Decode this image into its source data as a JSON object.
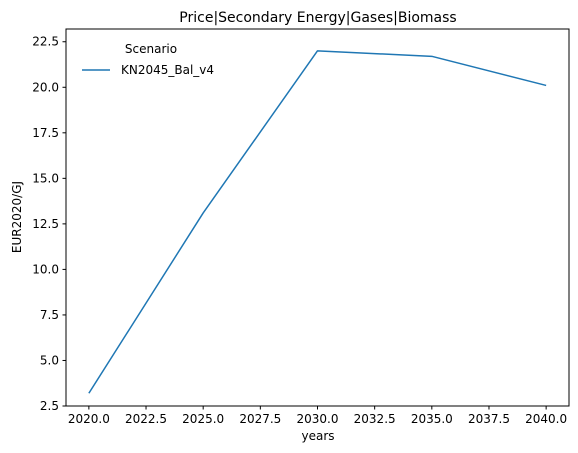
{
  "chart_data": {
    "type": "line",
    "title": "Price|Secondary Energy|Gases|Biomass",
    "xlabel": "years",
    "ylabel": "EUR2020/GJ",
    "xlim": [
      2019.0,
      2041.0
    ],
    "ylim": [
      2.5,
      23.2
    ],
    "xticks": [
      2020.0,
      2022.5,
      2025.0,
      2027.5,
      2030.0,
      2032.5,
      2035.0,
      2037.5,
      2040.0
    ],
    "xtick_labels": [
      "2020.0",
      "2022.5",
      "2025.0",
      "2027.5",
      "2030.0",
      "2032.5",
      "2035.0",
      "2037.5",
      "2040.0"
    ],
    "yticks": [
      2.5,
      5.0,
      7.5,
      10.0,
      12.5,
      15.0,
      17.5,
      20.0,
      22.5
    ],
    "ytick_labels": [
      "2.5",
      "5.0",
      "7.5",
      "10.0",
      "12.5",
      "15.0",
      "17.5",
      "20.0",
      "22.5"
    ],
    "grid": false,
    "legend": {
      "title": "Scenario",
      "placement": "top-left"
    },
    "series": [
      {
        "name": "KN2045_Bal_v4",
        "color": "#1f77b4",
        "x": [
          2020,
          2025,
          2030,
          2035,
          2040
        ],
        "y": [
          3.2,
          13.1,
          22.0,
          21.7,
          20.1
        ]
      }
    ]
  }
}
